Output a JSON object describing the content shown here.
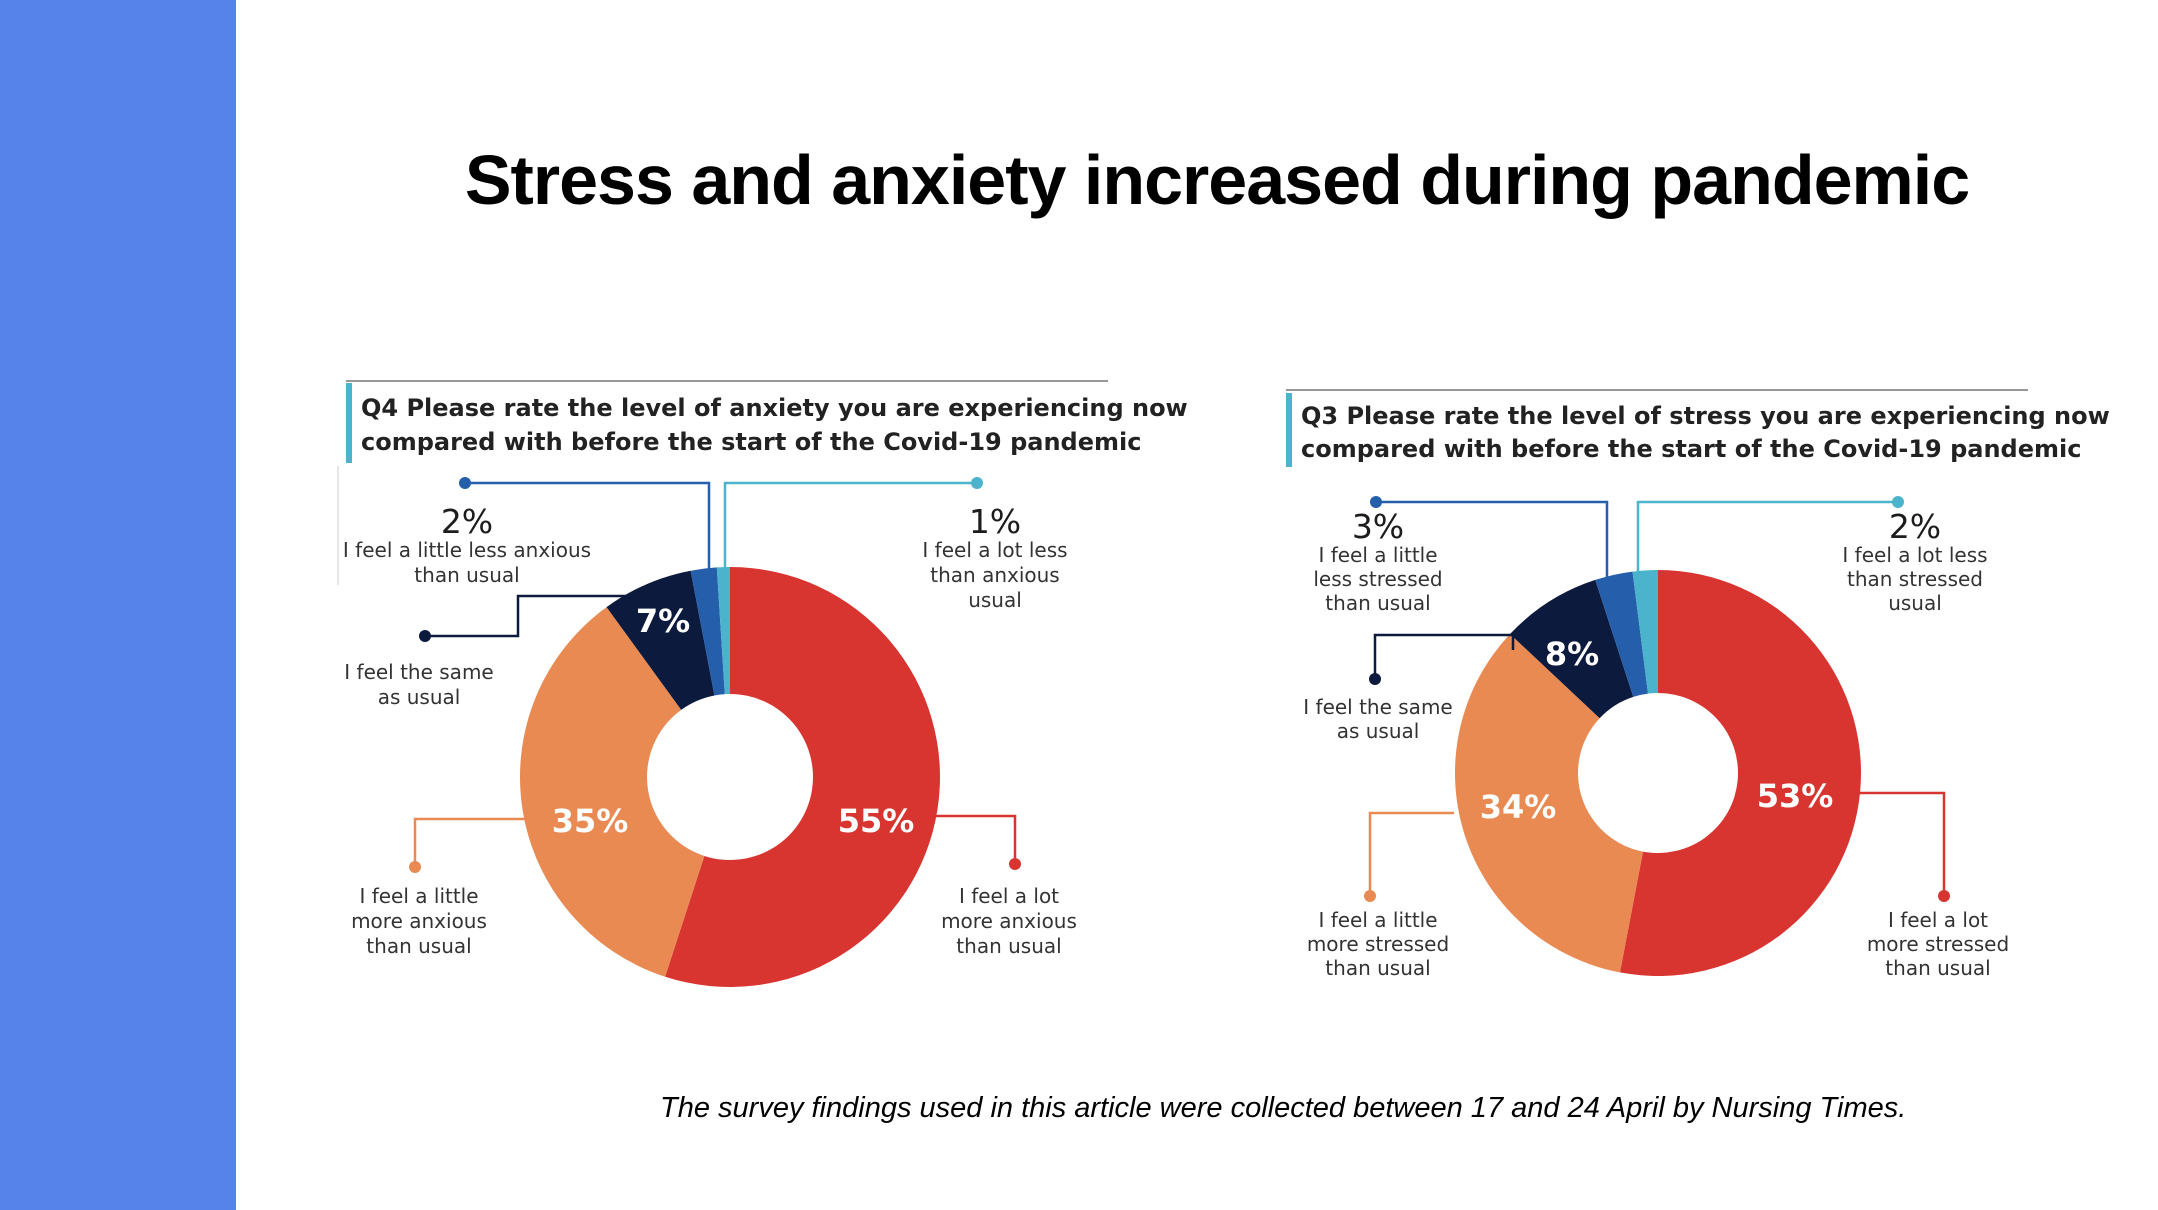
{
  "slide": {
    "title": "Stress and anxiety increased during pandemic",
    "footnote": "The survey findings used in this article were collected between 17 and 24 April by Nursing Times.",
    "sidebar_color": "#5583ea"
  },
  "colors": {
    "a_lot_more": "#d83530",
    "a_little_more": "#e88a52",
    "same": "#0b1a3d",
    "a_little_less": "#255fab",
    "a_lot_less": "#4bb3cb",
    "question_bar": "#4bb3cb"
  },
  "chart_data": [
    {
      "type": "pie",
      "style": "donut",
      "title_line1": "Q4 Please rate the level of anxiety you are experiencing now",
      "title_line2": "compared with before the start of the Covid-19 pandemic",
      "slices": [
        {
          "key": "a_lot_more",
          "value": 55,
          "pct_label": "55%",
          "label_lines": [
            "I feel a lot",
            "more anxious",
            "than usual"
          ]
        },
        {
          "key": "a_little_more",
          "value": 35,
          "pct_label": "35%",
          "label_lines": [
            "I feel a little",
            "more anxious",
            "than usual"
          ]
        },
        {
          "key": "same",
          "value": 7,
          "pct_label": "7%",
          "label_lines": [
            "I feel the same",
            "as usual"
          ]
        },
        {
          "key": "a_little_less",
          "value": 2,
          "pct_label": "2%",
          "label_lines": [
            "I feel a little less anxious",
            "than usual"
          ]
        },
        {
          "key": "a_lot_less",
          "value": 1,
          "pct_label": "1%",
          "label_lines": [
            "I feel a lot less",
            "than anxious",
            "usual"
          ]
        }
      ]
    },
    {
      "type": "pie",
      "style": "donut",
      "title_line1": "Q3 Please rate the level of stress you are experiencing now",
      "title_line2": "compared with before the start of the Covid-19 pandemic",
      "slices": [
        {
          "key": "a_lot_more",
          "value": 53,
          "pct_label": "53%",
          "label_lines": [
            "I feel a lot",
            "more stressed",
            "than usual"
          ]
        },
        {
          "key": "a_little_more",
          "value": 34,
          "pct_label": "34%",
          "label_lines": [
            "I feel a little",
            "more stressed",
            "than usual"
          ]
        },
        {
          "key": "same",
          "value": 8,
          "pct_label": "8%",
          "label_lines": [
            "I feel the same",
            "as usual"
          ]
        },
        {
          "key": "a_little_less",
          "value": 3,
          "pct_label": "3%",
          "label_lines": [
            "I feel a little",
            "less stressed",
            "than usual"
          ]
        },
        {
          "key": "a_lot_less",
          "value": 2,
          "pct_label": "2%",
          "label_lines": [
            "I feel a lot less",
            "than stressed",
            "usual"
          ]
        }
      ]
    }
  ]
}
